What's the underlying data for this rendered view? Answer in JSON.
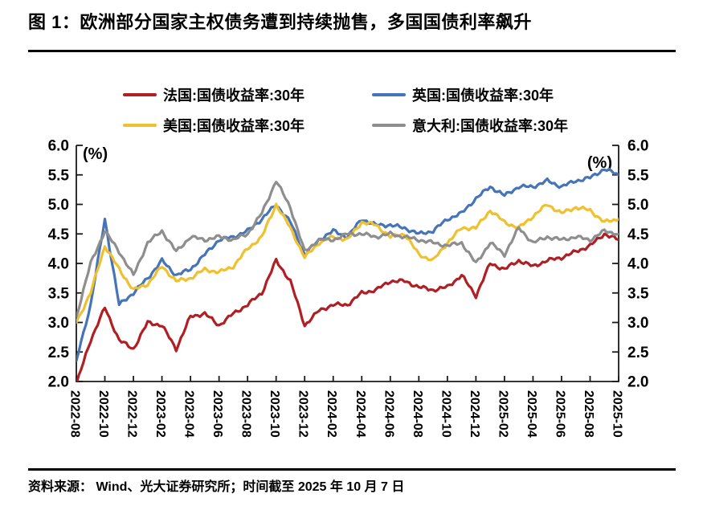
{
  "title": "图 1：欧洲部分国家主权债务遭到持续抛售，多国国债利率飙升",
  "footer": "资料来源： Wind、光大证券研究所；时间截至 2025 年 10 月 7 日",
  "chart_data": {
    "type": "line",
    "title": "",
    "xlabel": "",
    "ylabel": "",
    "unit_label": "(%)",
    "grid": false,
    "legend_position": "top",
    "ylim": [
      2.0,
      6.0
    ],
    "y_ticks": [
      "6.0",
      "5.5",
      "5.0",
      "4.5",
      "4.0",
      "3.5",
      "3.0",
      "2.5",
      "2.0"
    ],
    "x_tick_labels": [
      "2022-08",
      "2022-10",
      "2022-12",
      "2023-02",
      "2023-04",
      "2023-06",
      "2023-08",
      "2023-10",
      "2023-12",
      "2024-02",
      "2024-04",
      "2024-06",
      "2024-08",
      "2024-10",
      "2024-12",
      "2025-02",
      "2025-04",
      "2025-06",
      "2025-08",
      "2025-10"
    ],
    "x": [
      "2022-08",
      "2022-09",
      "2022-10",
      "2022-11",
      "2022-12",
      "2023-01",
      "2023-02",
      "2023-03",
      "2023-04",
      "2023-05",
      "2023-06",
      "2023-07",
      "2023-08",
      "2023-09",
      "2023-10",
      "2023-11",
      "2023-12",
      "2024-01",
      "2024-02",
      "2024-03",
      "2024-04",
      "2024-05",
      "2024-06",
      "2024-07",
      "2024-08",
      "2024-09",
      "2024-10",
      "2024-11",
      "2024-12",
      "2025-01",
      "2025-02",
      "2025-03",
      "2025-04",
      "2025-05",
      "2025-06",
      "2025-07",
      "2025-08",
      "2025-09",
      "2025-10"
    ],
    "series": [
      {
        "name": "法国:国债收益率:30年",
        "color": "#B01F24",
        "values": [
          1.95,
          2.7,
          3.25,
          2.7,
          2.55,
          3.0,
          2.95,
          2.55,
          3.1,
          3.15,
          2.95,
          3.15,
          3.3,
          3.5,
          4.05,
          3.7,
          2.95,
          3.2,
          3.3,
          3.3,
          3.5,
          3.55,
          3.7,
          3.7,
          3.6,
          3.55,
          3.6,
          3.8,
          3.45,
          4.0,
          3.9,
          4.05,
          3.95,
          4.05,
          4.1,
          4.2,
          4.3,
          4.5,
          4.4
        ]
      },
      {
        "name": "英国:国债收益率:30年",
        "color": "#4674B8",
        "values": [
          2.35,
          3.3,
          4.75,
          3.3,
          3.5,
          3.75,
          4.05,
          3.8,
          3.9,
          4.15,
          4.4,
          4.45,
          4.55,
          4.75,
          5.0,
          4.7,
          4.15,
          4.4,
          4.55,
          4.45,
          4.75,
          4.65,
          4.65,
          4.6,
          4.5,
          4.55,
          4.75,
          4.85,
          5.1,
          5.3,
          5.15,
          5.3,
          5.3,
          5.4,
          5.3,
          5.4,
          5.45,
          5.6,
          5.5
        ]
      },
      {
        "name": "美国:国债收益率:30年",
        "color": "#F0C02E",
        "values": [
          3.0,
          3.5,
          4.3,
          3.9,
          3.55,
          3.65,
          3.95,
          3.7,
          3.75,
          3.9,
          3.85,
          3.95,
          4.25,
          4.45,
          5.0,
          4.6,
          4.1,
          4.35,
          4.45,
          4.4,
          4.7,
          4.65,
          4.45,
          4.5,
          4.15,
          4.05,
          4.35,
          4.6,
          4.6,
          4.9,
          4.7,
          4.6,
          4.8,
          5.0,
          4.85,
          4.95,
          4.9,
          4.7,
          4.75
        ]
      },
      {
        "name": "意大利:国债收益率:30年",
        "color": "#8E8E8E",
        "values": [
          3.1,
          4.0,
          4.55,
          4.2,
          3.8,
          4.35,
          4.55,
          4.2,
          4.45,
          4.4,
          4.45,
          4.4,
          4.5,
          4.85,
          5.4,
          4.95,
          4.2,
          4.4,
          4.4,
          4.5,
          4.5,
          4.45,
          4.5,
          4.45,
          4.4,
          4.35,
          4.3,
          4.35,
          4.0,
          4.35,
          4.15,
          4.6,
          4.35,
          4.45,
          4.4,
          4.45,
          4.4,
          4.55,
          4.5
        ]
      }
    ]
  }
}
